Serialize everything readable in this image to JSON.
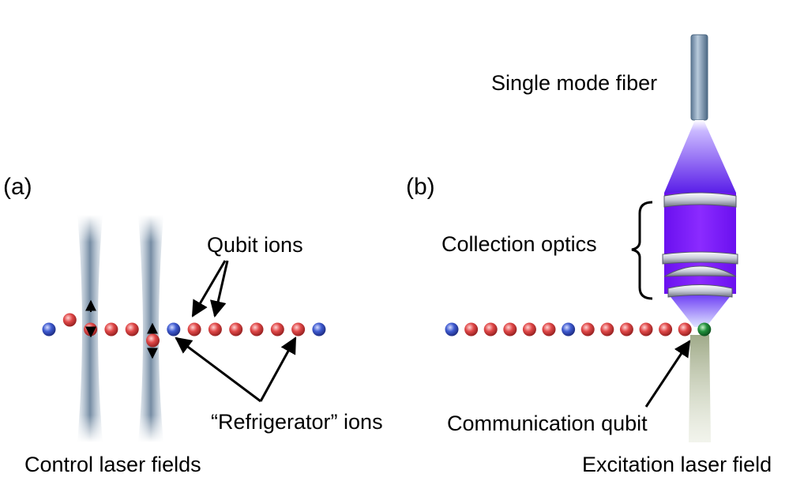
{
  "panel_a": {
    "label": "(a)",
    "qubit_ions_label": "Qubit ions",
    "refrigerator_ions_label": "“Refrigerator” ions",
    "control_laser_label": "Control laser fields",
    "ion_chain": [
      "blue",
      "red",
      "red",
      "red",
      "red",
      "red",
      "blue",
      "red",
      "red",
      "red",
      "red",
      "red",
      "red",
      "blue"
    ]
  },
  "panel_b": {
    "label": "(b)",
    "fiber_label": "Single mode fiber",
    "optics_label": "Collection optics",
    "communication_label": "Communication qubit",
    "excitation_label": "Excitation laser field",
    "ion_chain": [
      "blue",
      "red",
      "red",
      "red",
      "red",
      "red",
      "blue",
      "red",
      "red",
      "red",
      "red",
      "red",
      "red",
      "green"
    ]
  },
  "colors": {
    "qubit_ion": "#d94040",
    "refrigerator_ion": "#3a57c9",
    "communication_ion": "#1f8a3a",
    "collection_light": "#7a1cf0",
    "control_beam": "#6f8aa5",
    "excitation_beam": "#aeb79a"
  }
}
